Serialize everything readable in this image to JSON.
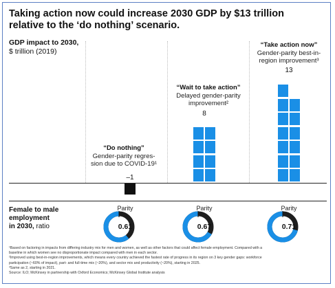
{
  "title": "Taking action now could increase 2030 GDP by $13 trillion relative to the ‘do nothing’ scenario.",
  "y_title": {
    "bold": "GDP impact to 2030,",
    "unit": "$ trillion (2019)"
  },
  "ratio_title": {
    "bold1": "Female to male",
    "bold2": "employment",
    "bold3": "in 2030,",
    "rest": "ratio"
  },
  "colors": {
    "bar": "#1a8fe6",
    "negative": "#111111",
    "donut_dark": "#1e1e1e",
    "donut_blue": "#1a8fe6"
  },
  "chart_data": {
    "type": "bar",
    "categories": [
      "“Do nothing”",
      "“Wait to take action”",
      "“Take action now”"
    ],
    "descriptions": [
      "Gender-parity regres-sion due to COVID-19¹",
      "Delayed gender-parity improvement²",
      "Gender-parity best-in-region improvement³"
    ],
    "values": [
      -1,
      8,
      13
    ],
    "value_labels": [
      "–1",
      "8",
      "13"
    ],
    "ylabel": "GDP impact to 2030, $ trillion (2019)",
    "ratio": {
      "label": "Female to male employment in 2030, ratio",
      "values": [
        0.61,
        0.67,
        0.71
      ],
      "value_labels": [
        "0.61",
        "0.67",
        "0.71"
      ],
      "parity_label": "Parity"
    }
  },
  "notes": [
    "¹Based on factoring in impacts from differing industry mix for men and women, as well as other factors that could affect female employment. Compared with a",
    "baseline in which women see no disproportionate impact compared with men in each sector.",
    "²Improved using best-in-region improvements, which means every country achieved the fastest rate of progress in its region on 3 key gender gaps: workforce",
    "participation (~60% of impact), part- and full-time mix (~20%), and sector mix and productivity (~20%), starting in 2025.",
    "³Same as 2, starting in 2021.",
    "Source: ILO; McKinsey in partnership with Oxford Economics; McKinsey Global Institute analysis"
  ]
}
